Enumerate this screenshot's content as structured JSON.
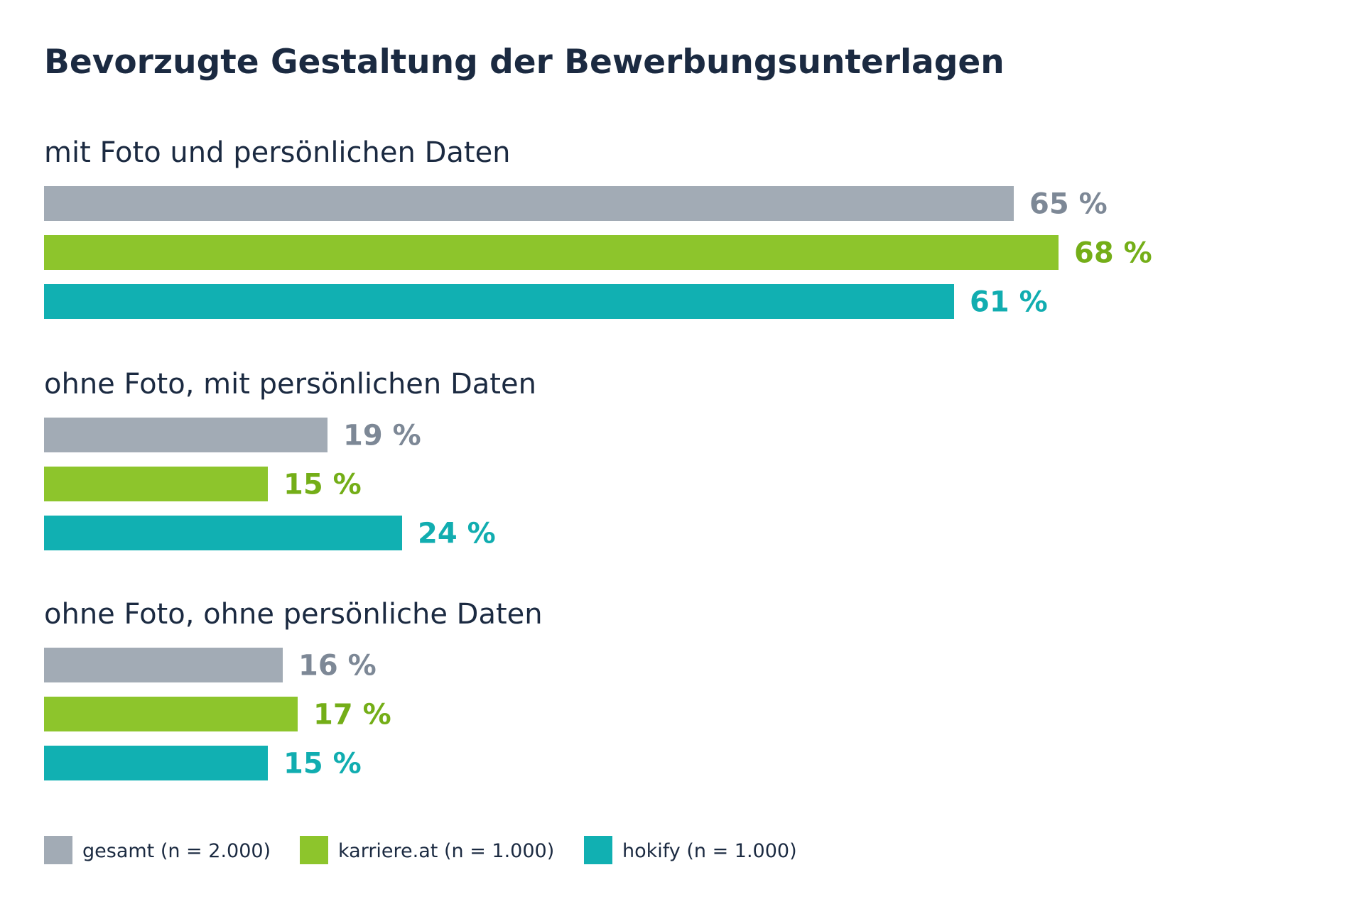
{
  "chart_data": {
    "type": "bar",
    "orientation": "horizontal",
    "title": "Bevorzugte Gestaltung der Bewerbungsunterlagen",
    "categories": [
      "mit Foto und persönlichen Daten",
      "ohne Foto, mit persönlichen Daten",
      "ohne Foto, ohne persönliche Daten"
    ],
    "series": [
      {
        "name": "gesamt (n = 2.000)",
        "color": "#a2abb5",
        "label_color": "#7d8896",
        "values": [
          65,
          19,
          16
        ],
        "labels": [
          "65 %",
          "19 %",
          "16 %"
        ]
      },
      {
        "name": "karriere.at (n = 1.000)",
        "color": "#8dc52c",
        "label_color": "#74ae18",
        "values": [
          68,
          15,
          17
        ],
        "labels": [
          "68 %",
          "15 %",
          "17 %"
        ]
      },
      {
        "name": "hokify (n = 1.000)",
        "color": "#11b0b2",
        "label_color": "#11adb0",
        "values": [
          61,
          24,
          15
        ],
        "labels": [
          "61 %",
          "24 %",
          "15 %"
        ]
      }
    ],
    "xlim": [
      0,
      100
    ],
    "grid": false,
    "legend_position": "bottom-left"
  }
}
